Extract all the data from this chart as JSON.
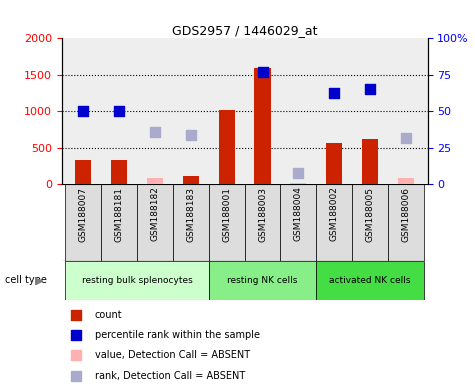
{
  "title": "GDS2957 / 1446029_at",
  "samples": [
    "GSM188007",
    "GSM188181",
    "GSM188182",
    "GSM188183",
    "GSM188001",
    "GSM188003",
    "GSM188004",
    "GSM188002",
    "GSM188005",
    "GSM188006"
  ],
  "count_values": [
    340,
    340,
    null,
    120,
    1020,
    1600,
    null,
    560,
    620,
    null
  ],
  "count_absent": [
    null,
    null,
    80,
    null,
    null,
    null,
    20,
    null,
    null,
    80
  ],
  "rank_values": [
    1010,
    1010,
    null,
    null,
    null,
    1540,
    null,
    1250,
    1300,
    null
  ],
  "rank_absent": [
    null,
    null,
    720,
    670,
    null,
    null,
    160,
    null,
    null,
    630
  ],
  "ylim_left": [
    0,
    2000
  ],
  "ylim_right": [
    0,
    100
  ],
  "yticks_left": [
    0,
    500,
    1000,
    1500,
    2000
  ],
  "ytick_labels_left": [
    "0",
    "500",
    "1000",
    "1500",
    "2000"
  ],
  "yticks_right": [
    0,
    25,
    50,
    75,
    100
  ],
  "ytick_labels_right": [
    "0",
    "25",
    "50",
    "75",
    "100%"
  ],
  "bar_color": "#cc2200",
  "bar_absent_color": "#ffb0b0",
  "rank_color": "#0000cc",
  "rank_absent_color": "#aaaacc",
  "group_defs": [
    {
      "start": 0,
      "end": 3,
      "color": "#ccffcc",
      "label": "resting bulk splenocytes"
    },
    {
      "start": 4,
      "end": 6,
      "color": "#88ee88",
      "label": "resting NK cells"
    },
    {
      "start": 7,
      "end": 9,
      "color": "#44dd44",
      "label": "activated NK cells"
    }
  ],
  "cell_type_label": "cell type",
  "legend_items": [
    {
      "color": "#cc2200",
      "label": "count"
    },
    {
      "color": "#0000cc",
      "label": "percentile rank within the sample"
    },
    {
      "color": "#ffb0b0",
      "label": "value, Detection Call = ABSENT"
    },
    {
      "color": "#aaaacc",
      "label": "rank, Detection Call = ABSENT"
    }
  ],
  "bar_width": 0.45,
  "scatter_size": 60,
  "bg_color": "#ffffff",
  "plot_bg": "#eeeeee",
  "sample_box_color": "#dddddd"
}
